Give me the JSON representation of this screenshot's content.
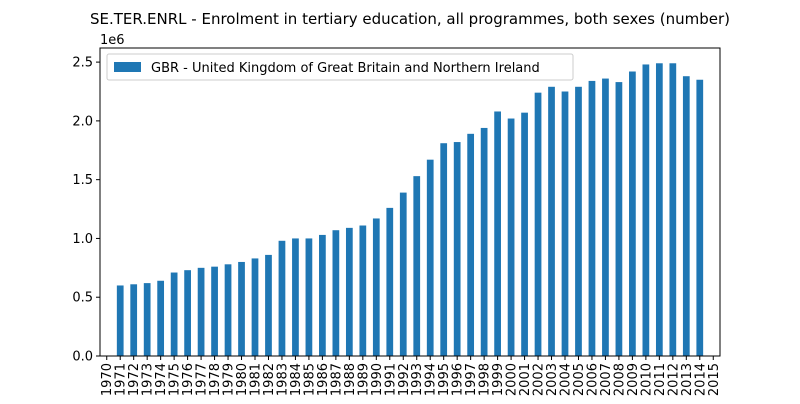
{
  "chart_data": {
    "type": "bar",
    "title": "SE.TER.ENRL - Enrolment in tertiary education, all programmes, both sexes (number)",
    "offset_label": "1e6",
    "xlabel": "",
    "ylabel": "",
    "ylim": [
      0,
      2.62
    ],
    "yticks": [
      0.0,
      0.5,
      1.0,
      1.5,
      2.0,
      2.5
    ],
    "ytick_labels": [
      "0.0",
      "0.5",
      "1.0",
      "1.5",
      "2.0",
      "2.5"
    ],
    "legend_position": "top-left",
    "grid": false,
    "categories": [
      "1970",
      "1971",
      "1972",
      "1973",
      "1974",
      "1975",
      "1976",
      "1977",
      "1978",
      "1979",
      "1980",
      "1981",
      "1982",
      "1983",
      "1984",
      "1985",
      "1986",
      "1987",
      "1988",
      "1989",
      "1990",
      "1991",
      "1992",
      "1993",
      "1994",
      "1995",
      "1996",
      "1997",
      "1998",
      "1999",
      "2000",
      "2001",
      "2002",
      "2003",
      "2004",
      "2005",
      "2006",
      "2007",
      "2008",
      "2009",
      "2010",
      "2011",
      "2012",
      "2013",
      "2014",
      "2015"
    ],
    "series": [
      {
        "name": "GBR - United Kingdom of Great Britain and Northern Ireland",
        "color": "#1f77b4",
        "values": [
          null,
          0.6,
          0.61,
          0.62,
          0.64,
          0.71,
          0.73,
          0.75,
          0.76,
          0.78,
          0.8,
          0.83,
          0.86,
          0.98,
          1.0,
          1.0,
          1.03,
          1.07,
          1.09,
          1.11,
          1.17,
          1.26,
          1.39,
          1.53,
          1.67,
          1.81,
          1.82,
          1.89,
          1.94,
          2.08,
          2.02,
          2.07,
          2.24,
          2.29,
          2.25,
          2.29,
          2.34,
          2.36,
          2.33,
          2.42,
          2.48,
          2.49,
          2.49,
          2.38,
          2.35,
          null
        ]
      }
    ]
  }
}
